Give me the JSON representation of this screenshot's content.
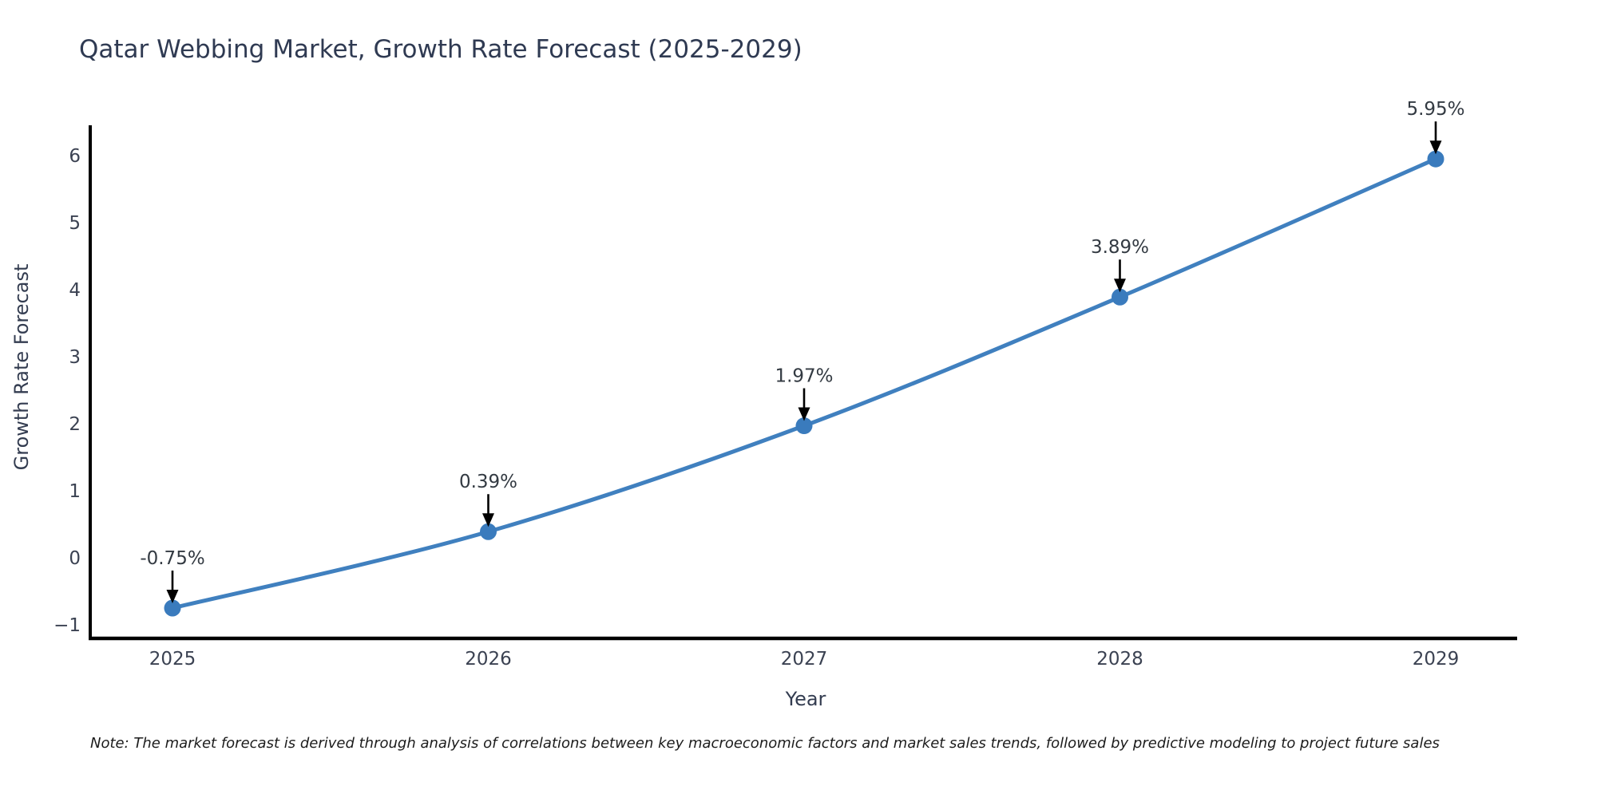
{
  "title": "Qatar Webbing Market, Growth Rate Forecast (2025-2029)",
  "note": "Note: The market forecast is derived through analysis of correlations between key macroeconomic factors and market sales trends, followed by predictive modeling to project future sales",
  "chart_data": {
    "type": "line",
    "title": "Qatar Webbing Market, Growth Rate Forecast (2025-2029)",
    "xlabel": "Year",
    "ylabel": "Growth Rate Forecast",
    "x": [
      2025,
      2026,
      2027,
      2028,
      2029
    ],
    "series": [
      {
        "name": "Growth Rate Forecast",
        "values": [
          -0.75,
          0.39,
          1.97,
          3.89,
          5.95
        ]
      }
    ],
    "annotations": [
      "-0.75%",
      "0.39%",
      "1.97%",
      "3.89%",
      "5.95%"
    ],
    "yticks": [
      -1,
      0,
      1,
      2,
      3,
      4,
      5,
      6
    ],
    "ylim": [
      -1.2,
      6.45
    ],
    "grid": false,
    "legend_position": "none",
    "line_color": "#4080bf",
    "marker_color": "#3a7bbd",
    "arrow_color": "#000000",
    "axis_color": "#000000",
    "tick_color": "#3b4252",
    "annotation_color": "#333a42",
    "title_color": "#2f3a52",
    "background_color": "#ffffff"
  }
}
